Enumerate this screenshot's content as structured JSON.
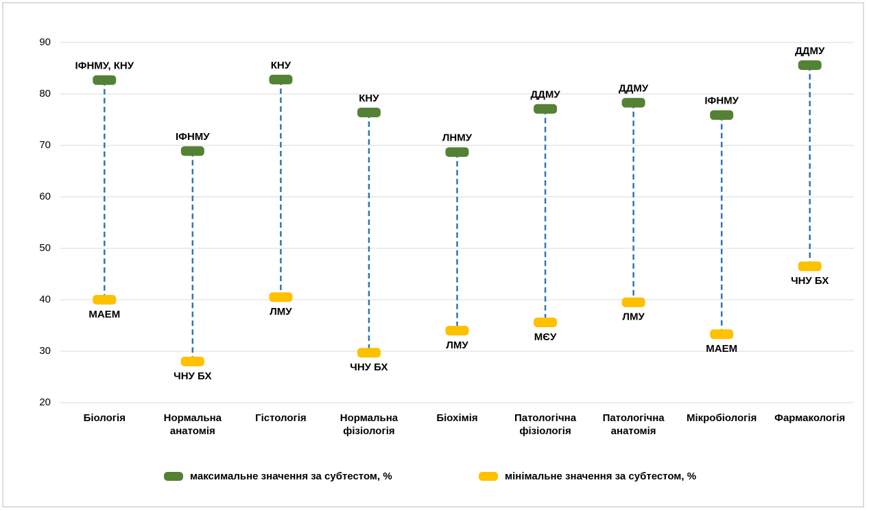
{
  "chart_data": {
    "type": "high-low",
    "categories": [
      "Біологія",
      "Нормальна анатомія",
      "Гістологія",
      "Нормальна фізіологія",
      "Біохімія",
      "Патологічна фізіологія",
      "Патологічна анатомія",
      "Мікробіологія",
      "Фармакологія"
    ],
    "series": [
      {
        "name": "максимальне значення за субтестом, %",
        "color": "#548235",
        "values": [
          82.7,
          68.9,
          82.8,
          76.4,
          68.7,
          77.1,
          78.3,
          75.9,
          85.6
        ],
        "point_labels": [
          "ІФНМУ, КНУ",
          "ІФНМУ",
          "КНУ",
          "КНУ",
          "ЛНМУ",
          "ДДМУ",
          "ДДМУ",
          "ІФНМУ",
          "ДДМУ"
        ]
      },
      {
        "name": "мінімальне значення за субтестом, %",
        "color": "#ffc000",
        "values": [
          40.0,
          28.0,
          40.5,
          29.7,
          34.0,
          35.6,
          39.5,
          33.3,
          46.5
        ],
        "point_labels": [
          "МАЕМ",
          "ЧНУ БХ",
          "ЛМУ",
          "ЧНУ БХ",
          "ЛМУ",
          "МЄУ",
          "ЛМУ",
          "МАЕМ",
          "ЧНУ БХ"
        ]
      }
    ],
    "line_color": "#2e75b6",
    "ylim": [
      20,
      90
    ],
    "yticks": [
      20,
      30,
      40,
      50,
      60,
      70,
      80,
      90
    ],
    "grid": true,
    "legend": "bottom"
  }
}
